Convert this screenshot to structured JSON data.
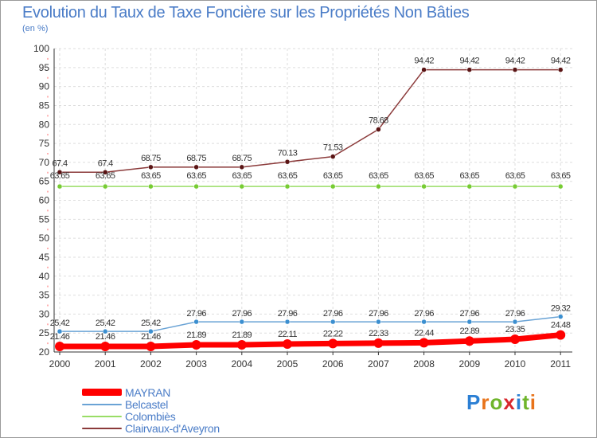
{
  "title": "Evolution du Taux de Taxe Foncière sur les Propriétés Non Bâties",
  "subtitle": "(en %)",
  "logo": {
    "letters": [
      "P",
      "r",
      "o",
      "x",
      "i",
      "t",
      "i"
    ],
    "colors": [
      "#2b7fd4",
      "#e8731a",
      "#6fb52c",
      "#d8272d",
      "#2b7fd4",
      "#6fb52c",
      "#e8731a"
    ]
  },
  "chart_data": {
    "type": "line",
    "title": "Evolution du Taux de Taxe Foncière sur les Propriétés Non Bâties",
    "ylabel": "(en %)",
    "xlabel": "",
    "ylim": [
      20,
      100
    ],
    "yticks": [
      "20",
      "25",
      "30",
      "35",
      "40",
      "45",
      "50",
      "55",
      "60",
      "65",
      "70",
      "75",
      "80",
      "85",
      "90",
      "95",
      "100"
    ],
    "grid": true,
    "categories": [
      "2000",
      "2001",
      "2002",
      "2003",
      "2004",
      "2005",
      "2006",
      "2007",
      "2008",
      "2009",
      "2010",
      "2011"
    ],
    "series": [
      {
        "name": "Clairvaux-d'Aveyron",
        "color": "#8b3a3a",
        "marker": "#5a1414",
        "values": [
          67.4,
          67.4,
          68.75,
          68.75,
          68.75,
          70.13,
          71.53,
          78.68,
          94.42,
          94.42,
          94.42,
          94.42
        ],
        "labels": [
          "67.4",
          "67.4",
          "68.75",
          "68.75",
          "68.75",
          "70.13",
          "71.53",
          "78.68",
          "94.42",
          "94.42",
          "94.42",
          "94.42"
        ]
      },
      {
        "name": "Colombiès",
        "color": "#99dd66",
        "marker": "#77cc33",
        "values": [
          63.65,
          63.65,
          63.65,
          63.65,
          63.65,
          63.65,
          63.65,
          63.65,
          63.65,
          63.65,
          63.65,
          63.65
        ],
        "labels": [
          "63.65",
          "63.65",
          "63.65",
          "63.65",
          "63.65",
          "63.65",
          "63.65",
          "63.65",
          "63.65",
          "63.65",
          "63.65",
          "63.65"
        ]
      },
      {
        "name": "Belcastel",
        "color": "#6aa3d5",
        "marker": "#3b8fd0",
        "values": [
          25.42,
          25.42,
          25.42,
          27.96,
          27.96,
          27.96,
          27.96,
          27.96,
          27.96,
          27.96,
          27.96,
          29.32
        ],
        "labels": [
          "25.42",
          "25.42",
          "25.42",
          "27.96",
          "27.96",
          "27.96",
          "27.96",
          "27.96",
          "27.96",
          "27.96",
          "27.96",
          "29.32"
        ]
      },
      {
        "name": "MAYRAN",
        "color": "#ff0000",
        "marker": "#ff0000",
        "values": [
          21.46,
          21.46,
          21.46,
          21.89,
          21.89,
          22.11,
          22.22,
          22.33,
          22.44,
          22.89,
          23.35,
          24.48
        ],
        "labels": [
          "21.46",
          "21.46",
          "21.46",
          "21.89",
          "21.89",
          "22.11",
          "22.22",
          "22.33",
          "22.44",
          "22.89",
          "23.35",
          "24.48"
        ]
      }
    ],
    "legend": [
      {
        "name": "MAYRAN",
        "color": "#ff0000"
      },
      {
        "name": "Belcastel",
        "color": "#6aa3d5"
      },
      {
        "name": "Colombiès",
        "color": "#99dd66"
      },
      {
        "name": "Clairvaux-d'Aveyron",
        "color": "#8b3a3a"
      }
    ]
  }
}
